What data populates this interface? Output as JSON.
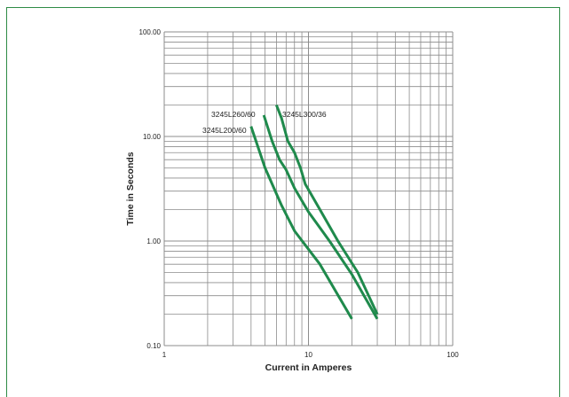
{
  "chart_data": {
    "type": "line",
    "title": "",
    "xlabel": "Current in Amperes",
    "ylabel": "Time in Seconds",
    "x_scale": "log",
    "y_scale": "log",
    "xlim": [
      1,
      100
    ],
    "ylim": [
      0.1,
      100
    ],
    "x_ticks": [
      {
        "value": 1,
        "label": "1"
      },
      {
        "value": 10,
        "label": "10"
      },
      {
        "value": 100,
        "label": "100"
      }
    ],
    "y_ticks": [
      {
        "value": 0.1,
        "label": "0.10"
      },
      {
        "value": 1,
        "label": "1.00"
      },
      {
        "value": 10,
        "label": "10.00"
      },
      {
        "value": 100,
        "label": "100.00"
      }
    ],
    "grid": true,
    "colors": {
      "series": "#1f8a4c",
      "grid": "#8c8c8c",
      "frame": "#2e8b45"
    },
    "series": [
      {
        "name": "3245L200/60",
        "points": [
          [
            4.0,
            12.5
          ],
          [
            5.0,
            5.0
          ],
          [
            6.5,
            2.2
          ],
          [
            8.0,
            1.25
          ],
          [
            12.0,
            0.6
          ],
          [
            20.0,
            0.18
          ]
        ]
      },
      {
        "name": "3245L260/60",
        "points": [
          [
            4.9,
            16.0
          ],
          [
            5.6,
            9.0
          ],
          [
            6.3,
            6.0
          ],
          [
            7.0,
            4.8
          ],
          [
            8.0,
            3.2
          ],
          [
            10.0,
            1.9
          ],
          [
            14.0,
            1.0
          ],
          [
            20.0,
            0.48
          ],
          [
            30.0,
            0.18
          ]
        ]
      },
      {
        "name": "3245L300/36",
        "points": [
          [
            6.0,
            20.0
          ],
          [
            6.5,
            15.0
          ],
          [
            7.2,
            9.0
          ],
          [
            8.0,
            7.0
          ],
          [
            8.8,
            5.0
          ],
          [
            9.5,
            3.5
          ],
          [
            12.0,
            2.0
          ],
          [
            16.0,
            1.0
          ],
          [
            22.0,
            0.5
          ],
          [
            30.0,
            0.2
          ]
        ]
      }
    ],
    "annotations": [
      {
        "text": "3245L260/60",
        "series": "3245L260/60"
      },
      {
        "text": "3245L200/60",
        "series": "3245L200/60"
      },
      {
        "text": "3245L300/36",
        "series": "3245L300/36"
      }
    ]
  }
}
